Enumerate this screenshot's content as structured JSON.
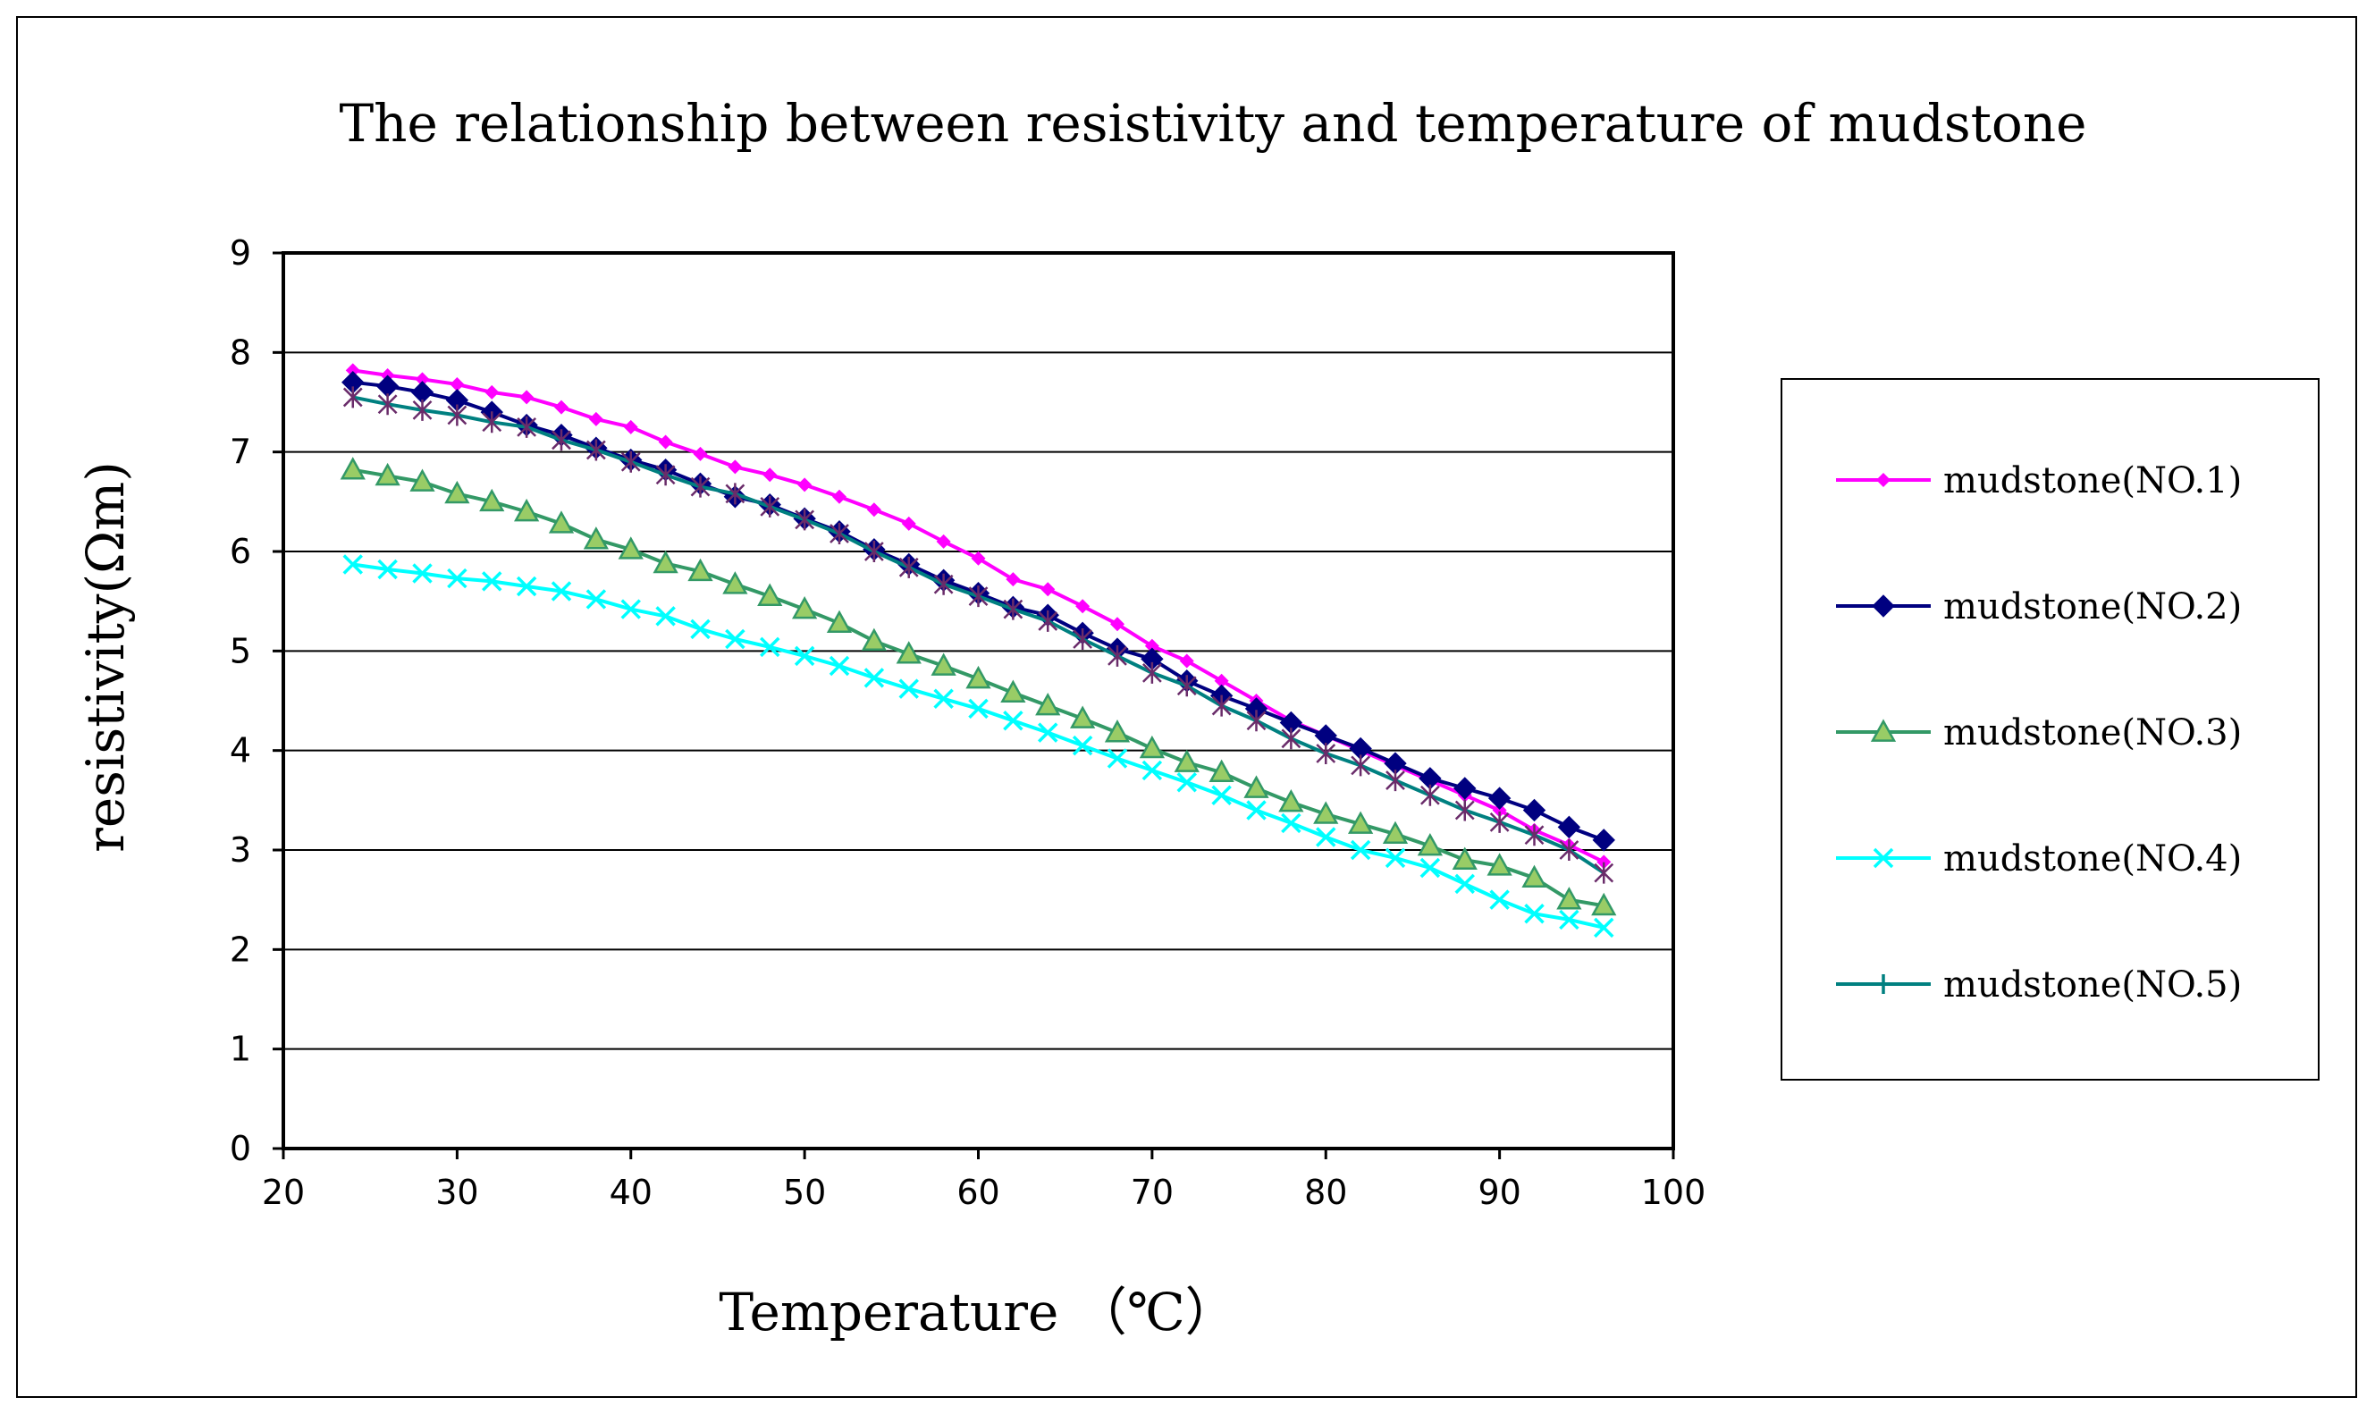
{
  "chart_data": {
    "type": "line",
    "title": "The relationship between resistivity and temperature of mudstone",
    "xlabel": "Temperature （℃）",
    "ylabel": "resistivity(Ωm)",
    "xlim": [
      20,
      100
    ],
    "ylim": [
      0,
      9
    ],
    "x_ticks": [
      20,
      30,
      40,
      50,
      60,
      70,
      80,
      90,
      100
    ],
    "y_ticks": [
      0,
      1,
      2,
      3,
      4,
      5,
      6,
      7,
      8,
      9
    ],
    "grid": "horizontal",
    "legend_position": "right",
    "x": [
      24,
      26,
      28,
      30,
      32,
      34,
      36,
      38,
      40,
      42,
      44,
      46,
      48,
      50,
      52,
      54,
      56,
      58,
      60,
      62,
      64,
      66,
      68,
      70,
      72,
      74,
      76,
      78,
      80,
      82,
      84,
      86,
      88,
      90,
      92,
      94,
      96
    ],
    "series": [
      {
        "name": "mudstone(NO.1)",
        "color": "#ff00ff",
        "marker": "diamond-small",
        "values": [
          7.82,
          7.77,
          7.73,
          7.68,
          7.6,
          7.55,
          7.45,
          7.33,
          7.25,
          7.1,
          6.98,
          6.85,
          6.77,
          6.67,
          6.55,
          6.42,
          6.28,
          6.1,
          5.93,
          5.72,
          5.62,
          5.45,
          5.27,
          5.05,
          4.9,
          4.7,
          4.5,
          4.3,
          4.15,
          4.0,
          3.85,
          3.7,
          3.55,
          3.4,
          3.2,
          3.05,
          2.88
        ]
      },
      {
        "name": "mudstone(NO.2)",
        "color": "#000080",
        "marker": "diamond",
        "values": [
          7.7,
          7.66,
          7.6,
          7.52,
          7.4,
          7.27,
          7.17,
          7.04,
          6.92,
          6.82,
          6.68,
          6.55,
          6.47,
          6.33,
          6.2,
          6.02,
          5.87,
          5.71,
          5.58,
          5.44,
          5.36,
          5.18,
          5.02,
          4.92,
          4.7,
          4.55,
          4.42,
          4.28,
          4.15,
          4.02,
          3.87,
          3.72,
          3.62,
          3.52,
          3.4,
          3.23,
          3.1
        ]
      },
      {
        "name": "mudstone(NO.3)",
        "color": "#339966",
        "marker": "triangle",
        "values": [
          6.82,
          6.76,
          6.7,
          6.58,
          6.5,
          6.4,
          6.28,
          6.12,
          6.02,
          5.88,
          5.8,
          5.67,
          5.55,
          5.42,
          5.28,
          5.1,
          4.97,
          4.85,
          4.72,
          4.58,
          4.45,
          4.32,
          4.18,
          4.02,
          3.88,
          3.78,
          3.62,
          3.48,
          3.36,
          3.26,
          3.16,
          3.04,
          2.9,
          2.84,
          2.72,
          2.5,
          2.44
        ]
      },
      {
        "name": "mudstone(NO.4)",
        "color": "#00ffff",
        "marker": "x",
        "values": [
          5.87,
          5.82,
          5.78,
          5.73,
          5.7,
          5.65,
          5.6,
          5.52,
          5.42,
          5.35,
          5.22,
          5.12,
          5.04,
          4.95,
          4.85,
          4.73,
          4.62,
          4.52,
          4.42,
          4.3,
          4.18,
          4.05,
          3.92,
          3.8,
          3.68,
          3.55,
          3.4,
          3.27,
          3.13,
          3.0,
          2.92,
          2.82,
          2.66,
          2.5,
          2.36,
          2.3,
          2.22
        ]
      },
      {
        "name": "mudstone(NO.5)",
        "color": "#008080",
        "marker": "star",
        "values": [
          7.55,
          7.48,
          7.42,
          7.37,
          7.3,
          7.25,
          7.12,
          7.02,
          6.9,
          6.77,
          6.65,
          6.58,
          6.45,
          6.32,
          6.18,
          6.0,
          5.84,
          5.67,
          5.55,
          5.42,
          5.3,
          5.12,
          4.95,
          4.78,
          4.65,
          4.45,
          4.3,
          4.12,
          3.97,
          3.85,
          3.7,
          3.55,
          3.4,
          3.28,
          3.15,
          3.0,
          2.77
        ]
      }
    ]
  }
}
